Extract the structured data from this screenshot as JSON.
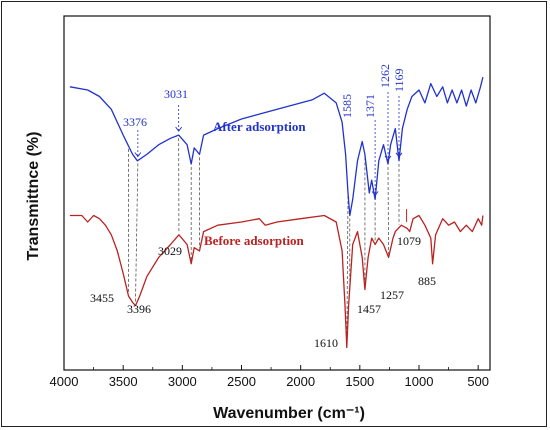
{
  "chart_data": {
    "type": "line",
    "xlabel": "Wavenumber (cm⁻¹)",
    "ylabel": "Transmittnce (%)",
    "xlim": [
      4000,
      400
    ],
    "x_ticks": [
      4000,
      3500,
      3000,
      2500,
      2000,
      1500,
      1000,
      500
    ],
    "grid": false,
    "series": [
      {
        "name": "After adsorption",
        "color": "#2233cc",
        "points": [
          [
            3950,
            73
          ],
          [
            3800,
            72
          ],
          [
            3700,
            70
          ],
          [
            3600,
            66
          ],
          [
            3500,
            58
          ],
          [
            3420,
            52
          ],
          [
            3380,
            50
          ],
          [
            3300,
            52
          ],
          [
            3200,
            55
          ],
          [
            3100,
            57
          ],
          [
            3031,
            58
          ],
          [
            2960,
            55
          ],
          [
            2925,
            49
          ],
          [
            2900,
            54
          ],
          [
            2855,
            52
          ],
          [
            2820,
            58
          ],
          [
            2700,
            60
          ],
          [
            2500,
            63
          ],
          [
            2300,
            65
          ],
          [
            2100,
            67
          ],
          [
            1900,
            69
          ],
          [
            1800,
            71
          ],
          [
            1700,
            68
          ],
          [
            1650,
            62
          ],
          [
            1620,
            52
          ],
          [
            1600,
            40
          ],
          [
            1585,
            33
          ],
          [
            1560,
            38
          ],
          [
            1520,
            50
          ],
          [
            1480,
            56
          ],
          [
            1457,
            52
          ],
          [
            1420,
            40
          ],
          [
            1400,
            44
          ],
          [
            1371,
            38
          ],
          [
            1340,
            50
          ],
          [
            1300,
            55
          ],
          [
            1262,
            49
          ],
          [
            1240,
            55
          ],
          [
            1200,
            60
          ],
          [
            1169,
            50
          ],
          [
            1140,
            60
          ],
          [
            1100,
            66
          ],
          [
            1060,
            70
          ],
          [
            1000,
            72
          ],
          [
            950,
            68
          ],
          [
            900,
            74
          ],
          [
            850,
            70
          ],
          [
            800,
            73
          ],
          [
            760,
            68
          ],
          [
            720,
            72
          ],
          [
            680,
            68
          ],
          [
            640,
            72
          ],
          [
            600,
            67
          ],
          [
            560,
            72
          ],
          [
            520,
            68
          ],
          [
            480,
            73
          ],
          [
            460,
            76
          ]
        ]
      },
      {
        "name": "Before adsorption",
        "color": "#bb2222",
        "points": [
          [
            3950,
            33
          ],
          [
            3850,
            33
          ],
          [
            3800,
            31
          ],
          [
            3750,
            33
          ],
          [
            3700,
            32
          ],
          [
            3650,
            30
          ],
          [
            3600,
            27
          ],
          [
            3550,
            22
          ],
          [
            3500,
            15
          ],
          [
            3455,
            8
          ],
          [
            3420,
            6
          ],
          [
            3396,
            5
          ],
          [
            3360,
            8
          ],
          [
            3300,
            14
          ],
          [
            3200,
            20
          ],
          [
            3100,
            24
          ],
          [
            3029,
            27
          ],
          [
            2960,
            24
          ],
          [
            2925,
            18
          ],
          [
            2900,
            23
          ],
          [
            2855,
            22
          ],
          [
            2820,
            28
          ],
          [
            2700,
            30
          ],
          [
            2500,
            31
          ],
          [
            2350,
            32
          ],
          [
            2300,
            30
          ],
          [
            2200,
            31
          ],
          [
            2000,
            32
          ],
          [
            1800,
            33
          ],
          [
            1700,
            31
          ],
          [
            1650,
            22
          ],
          [
            1625,
            5
          ],
          [
            1610,
            -8
          ],
          [
            1595,
            5
          ],
          [
            1560,
            24
          ],
          [
            1520,
            28
          ],
          [
            1480,
            20
          ],
          [
            1457,
            10
          ],
          [
            1430,
            20
          ],
          [
            1400,
            26
          ],
          [
            1371,
            24
          ],
          [
            1340,
            26
          ],
          [
            1300,
            24
          ],
          [
            1257,
            20
          ],
          [
            1220,
            26
          ],
          [
            1200,
            28
          ],
          [
            1150,
            30
          ],
          [
            1100,
            29
          ],
          [
            1079,
            28
          ],
          [
            1050,
            32
          ],
          [
            1000,
            33
          ],
          [
            950,
            30
          ],
          [
            900,
            26
          ],
          [
            885,
            18
          ],
          [
            860,
            27
          ],
          [
            800,
            32
          ],
          [
            750,
            30
          ],
          [
            700,
            31
          ],
          [
            650,
            28
          ],
          [
            600,
            30
          ],
          [
            550,
            28
          ],
          [
            500,
            32
          ],
          [
            470,
            30
          ],
          [
            460,
            33
          ]
        ]
      }
    ]
  },
  "annotations": {
    "after": [
      "3376",
      "3031",
      "1585",
      "1371",
      "1262",
      "1169"
    ],
    "before": [
      "3455",
      "3396",
      "3029",
      "1610",
      "1457",
      "1257",
      "885",
      "1079"
    ]
  }
}
